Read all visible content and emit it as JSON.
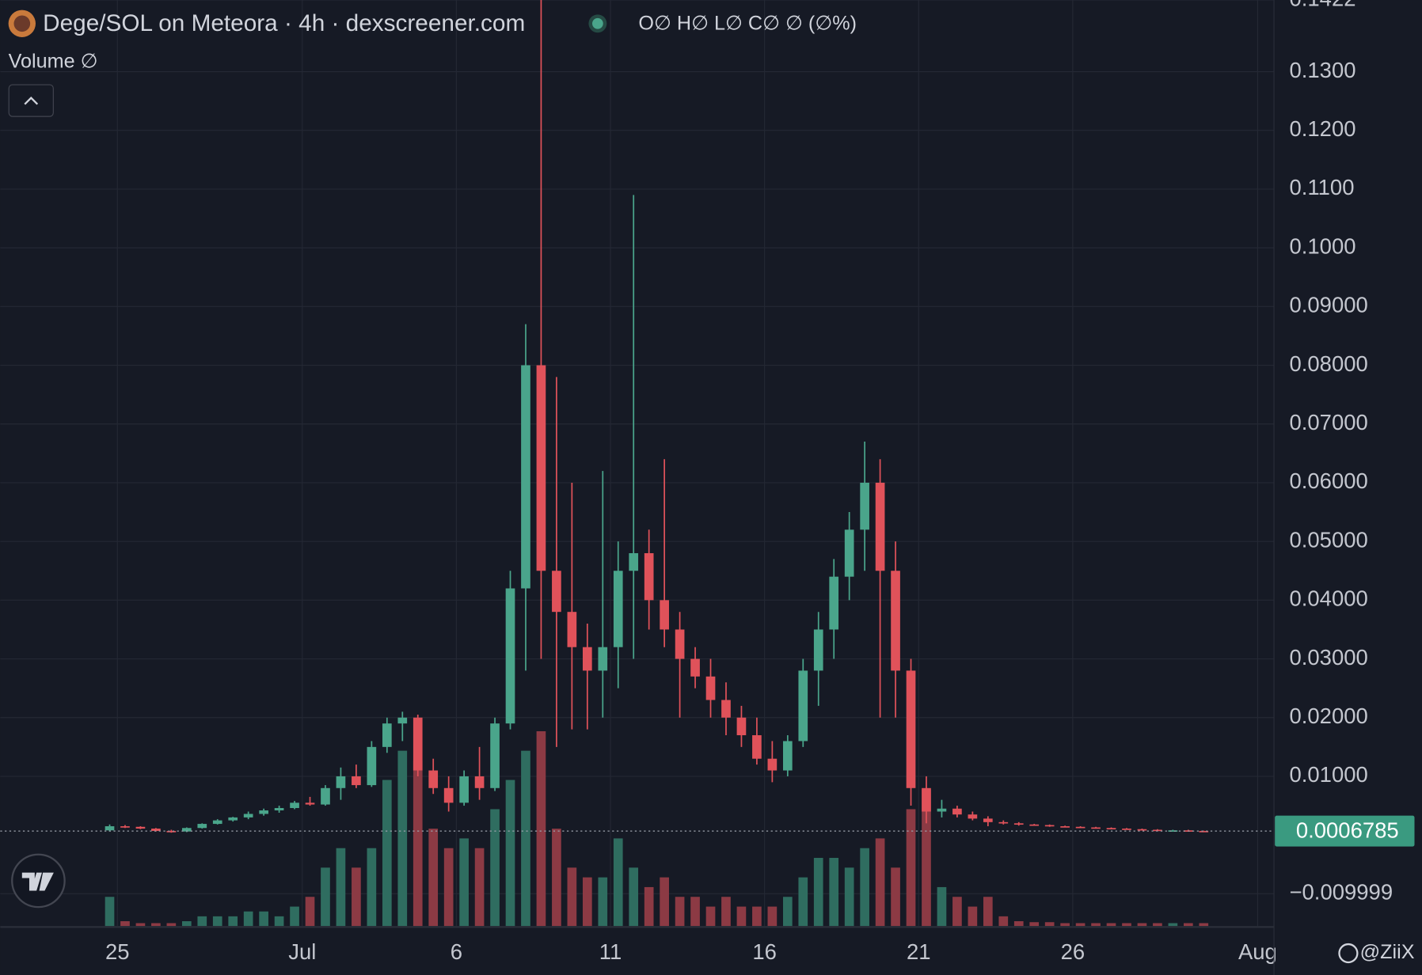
{
  "chart_data": {
    "type": "candlestick",
    "title": "Dege/SOL on Meteora · 4h · dexscreener.com",
    "ohlc_legend": "O∅ H∅ L∅ C∅ ∅ (∅%)",
    "volume_label": "Volume ∅",
    "watermark": "@ZiiX",
    "x": [
      24.75,
      25.25,
      25.75,
      26.25,
      26.75,
      27.25,
      27.75,
      28.25,
      28.75,
      29.25,
      29.75,
      30.25,
      30.75,
      31.25,
      31.75,
      32.25,
      32.75,
      33.25,
      33.75,
      34.25,
      34.75,
      35.25,
      35.75,
      36.25,
      36.75,
      37.25,
      37.75,
      38.25,
      38.75,
      39.25,
      39.75,
      40.25,
      40.75,
      41.25,
      41.75,
      42.25,
      42.75,
      43.25,
      43.75,
      44.25,
      44.75,
      45.25,
      45.75,
      46.25,
      46.75,
      47.25,
      47.75,
      48.25,
      48.75,
      49.25,
      49.75,
      50.25,
      50.75,
      51.25,
      51.75,
      52.25,
      52.75,
      53.25,
      53.75,
      54.25,
      54.75,
      55.25,
      55.75,
      56.25,
      56.75,
      57.25,
      57.75,
      58.25,
      58.75,
      59.25,
      59.75,
      60.25
    ],
    "open": [
      0.0008,
      0.0015,
      0.0014,
      0.0011,
      0.0007,
      0.0006,
      0.0012,
      0.0019,
      0.0025,
      0.003,
      0.0036,
      0.0042,
      0.0046,
      0.0055,
      0.0052,
      0.008,
      0.01,
      0.0085,
      0.015,
      0.019,
      0.02,
      0.011,
      0.008,
      0.0055,
      0.01,
      0.008,
      0.019,
      0.042,
      0.08,
      0.045,
      0.038,
      0.032,
      0.028,
      0.032,
      0.045,
      0.048,
      0.04,
      0.035,
      0.03,
      0.027,
      0.023,
      0.02,
      0.017,
      0.013,
      0.011,
      0.016,
      0.028,
      0.035,
      0.044,
      0.052,
      0.06,
      0.045,
      0.028,
      0.008,
      0.004,
      0.0045,
      0.0035,
      0.0028,
      0.0022,
      0.002,
      0.0018,
      0.0017,
      0.0015,
      0.0014,
      0.0013,
      0.0012,
      0.0011,
      0.001,
      0.0009,
      0.0008,
      0.0008,
      0.0007
    ],
    "high": [
      0.0018,
      0.0017,
      0.0015,
      0.0012,
      0.0009,
      0.0013,
      0.002,
      0.0027,
      0.0031,
      0.004,
      0.0045,
      0.005,
      0.0058,
      0.0065,
      0.0085,
      0.0115,
      0.012,
      0.016,
      0.02,
      0.021,
      0.0205,
      0.013,
      0.01,
      0.011,
      0.015,
      0.02,
      0.045,
      0.087,
      0.1422,
      0.078,
      0.06,
      0.036,
      0.062,
      0.05,
      0.109,
      0.052,
      0.064,
      0.038,
      0.032,
      0.03,
      0.026,
      0.022,
      0.02,
      0.016,
      0.017,
      0.03,
      0.038,
      0.047,
      0.055,
      0.067,
      0.064,
      0.05,
      0.03,
      0.01,
      0.006,
      0.005,
      0.004,
      0.0032,
      0.0025,
      0.0022,
      0.0019,
      0.0018,
      0.0016,
      0.0015,
      0.0014,
      0.0013,
      0.0012,
      0.0011,
      0.001,
      0.0009,
      0.0009,
      0.00075
    ],
    "low": [
      0.0006,
      0.0012,
      0.001,
      0.0006,
      0.0004,
      0.0005,
      0.0011,
      0.0018,
      0.0023,
      0.0027,
      0.0033,
      0.0038,
      0.0044,
      0.005,
      0.005,
      0.006,
      0.008,
      0.0082,
      0.014,
      0.016,
      0.01,
      0.007,
      0.004,
      0.005,
      0.006,
      0.0075,
      0.018,
      0.028,
      0.03,
      0.015,
      0.018,
      0.018,
      0.02,
      0.025,
      0.03,
      0.035,
      0.032,
      0.02,
      0.025,
      0.02,
      0.017,
      0.015,
      0.012,
      0.009,
      0.01,
      0.015,
      0.022,
      0.03,
      0.04,
      0.045,
      0.02,
      0.02,
      0.005,
      0.002,
      0.003,
      0.003,
      0.0025,
      0.0015,
      0.0018,
      0.0016,
      0.0016,
      0.0014,
      0.0013,
      0.0012,
      0.0011,
      0.001,
      0.0009,
      0.0008,
      0.0008,
      0.0007,
      0.0006,
      0.00065
    ],
    "close": [
      0.0015,
      0.0014,
      0.0011,
      0.0007,
      0.0006,
      0.0012,
      0.0019,
      0.0025,
      0.003,
      0.0036,
      0.0042,
      0.0046,
      0.0055,
      0.0052,
      0.008,
      0.01,
      0.0085,
      0.015,
      0.019,
      0.02,
      0.011,
      0.008,
      0.0055,
      0.01,
      0.008,
      0.019,
      0.042,
      0.08,
      0.045,
      0.038,
      0.032,
      0.028,
      0.032,
      0.045,
      0.048,
      0.04,
      0.035,
      0.03,
      0.027,
      0.023,
      0.02,
      0.017,
      0.013,
      0.011,
      0.016,
      0.028,
      0.035,
      0.044,
      0.052,
      0.06,
      0.045,
      0.028,
      0.008,
      0.004,
      0.0045,
      0.0035,
      0.0028,
      0.0022,
      0.002,
      0.0018,
      0.0017,
      0.0015,
      0.0014,
      0.0013,
      0.0012,
      0.0011,
      0.001,
      0.0009,
      0.0008,
      0.0008,
      0.0007,
      0.0006785
    ],
    "volume": [
      3,
      0.5,
      0.3,
      0.3,
      0.3,
      0.5,
      1,
      1,
      1,
      1.5,
      1.5,
      1,
      2,
      3,
      6,
      8,
      6,
      8,
      15,
      18,
      17,
      10,
      8,
      9,
      8,
      12,
      15,
      18,
      20,
      10,
      6,
      5,
      5,
      9,
      6,
      4,
      5,
      3,
      3,
      2,
      3,
      2,
      2,
      2,
      3,
      5,
      7,
      7,
      6,
      8,
      9,
      6,
      12,
      14,
      4,
      3,
      2,
      3,
      1,
      0.5,
      0.4,
      0.4,
      0.3,
      0.3,
      0.3,
      0.3,
      0.3,
      0.3,
      0.3,
      0.3,
      0.3,
      0.3
    ],
    "up_color": "#4aa58b",
    "down_color": "#e0525a",
    "volume_up_color": "#2f6d60",
    "volume_down_color": "#8c3a44",
    "xlim": [
      21.2,
      62.53
    ],
    "xticks": [
      {
        "value": 25,
        "label": "25"
      },
      {
        "value": 31,
        "label": "Jul"
      },
      {
        "value": 36,
        "label": "6"
      },
      {
        "value": 41,
        "label": "11"
      },
      {
        "value": 46,
        "label": "16"
      },
      {
        "value": 51,
        "label": "21"
      },
      {
        "value": 56,
        "label": "26"
      },
      {
        "value": 62,
        "label": "Aug"
      }
    ],
    "ylim": [
      -0.0155,
      0.1422
    ],
    "yticks": [
      {
        "value": -0.009999,
        "label": "−0.009999"
      },
      {
        "value": 0.01,
        "label": "0.01000"
      },
      {
        "value": 0.02,
        "label": "0.02000"
      },
      {
        "value": 0.03,
        "label": "0.03000"
      },
      {
        "value": 0.04,
        "label": "0.04000"
      },
      {
        "value": 0.05,
        "label": "0.05000"
      },
      {
        "value": 0.06,
        "label": "0.06000"
      },
      {
        "value": 0.07,
        "label": "0.07000"
      },
      {
        "value": 0.08,
        "label": "0.08000"
      },
      {
        "value": 0.09,
        "label": "0.09000"
      },
      {
        "value": 0.1,
        "label": "0.1000"
      },
      {
        "value": 0.11,
        "label": "0.1100"
      },
      {
        "value": 0.12,
        "label": "0.1200"
      },
      {
        "value": 0.13,
        "label": "0.1300"
      },
      {
        "value": 0.1422,
        "label": "0.1422"
      }
    ],
    "volume_lim": [
      0,
      20
    ],
    "last_price": 0.0006785,
    "grid": true
  }
}
